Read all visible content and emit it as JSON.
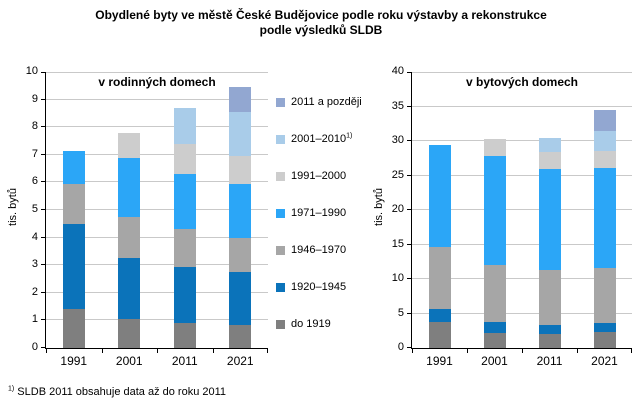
{
  "title": {
    "line1": "Obydlené byty ve městě České Budějovice podle roku výstavby a rekonstrukce",
    "line2": "podle výsledků SLDB"
  },
  "footnote": {
    "sup": "1)",
    "text": " SLDB 2011 obsahuje data až do roku 2011"
  },
  "colors": {
    "grid": "#c9c9c9",
    "axis": "#000000",
    "background": "#ffffff"
  },
  "legend": {
    "position": "center-between-panels",
    "items": [
      {
        "label": "2011 a později",
        "sup": "",
        "color": "#92a7d1"
      },
      {
        "label": "2001–2010",
        "sup": "1)",
        "color": "#a9cce9"
      },
      {
        "label": "1991–2000",
        "sup": "",
        "color": "#cdcdcd"
      },
      {
        "label": "1971–1990",
        "sup": "",
        "color": "#2ba6f7"
      },
      {
        "label": "1946–1970",
        "sup": "",
        "color": "#a6a6a6"
      },
      {
        "label": "1920–1945",
        "sup": "",
        "color": "#0b73ba"
      },
      {
        "label": "do 1919",
        "sup": "",
        "color": "#7f7f7f"
      }
    ]
  },
  "chart_data": [
    {
      "type": "bar",
      "stacked": true,
      "title": "v rodinných domech",
      "ylabel": "tis. bytů",
      "xlabel": "",
      "categories": [
        "1991",
        "2001",
        "2011",
        "2021"
      ],
      "ylim": [
        0,
        10
      ],
      "ytick_step": 1,
      "grid": true,
      "series": [
        {
          "name": "do 1919",
          "color": "#7f7f7f",
          "values": [
            1.4,
            1.05,
            0.9,
            0.85
          ]
        },
        {
          "name": "1920–1945",
          "color": "#0b73ba",
          "values": [
            3.1,
            2.2,
            2.05,
            1.9
          ]
        },
        {
          "name": "1946–1970",
          "color": "#a6a6a6",
          "values": [
            1.45,
            1.5,
            1.35,
            1.25
          ]
        },
        {
          "name": "1971–1990",
          "color": "#2ba6f7",
          "values": [
            1.2,
            2.15,
            2.0,
            1.95
          ]
        },
        {
          "name": "1991–2000",
          "color": "#cdcdcd",
          "values": [
            0,
            0.9,
            1.1,
            1.0
          ]
        },
        {
          "name": "2001–2010",
          "color": "#a9cce9",
          "values": [
            0,
            0,
            1.3,
            1.6
          ]
        },
        {
          "name": "2011 a později",
          "color": "#92a7d1",
          "values": [
            0,
            0,
            0,
            0.9
          ]
        }
      ],
      "totals": [
        7.15,
        7.8,
        8.7,
        9.45
      ]
    },
    {
      "type": "bar",
      "stacked": true,
      "title": "v bytových domech",
      "ylabel": "tis. bytů",
      "xlabel": "",
      "categories": [
        "1991",
        "2001",
        "2011",
        "2021"
      ],
      "ylim": [
        0,
        40
      ],
      "ytick_step": 5,
      "grid": true,
      "series": [
        {
          "name": "do 1919",
          "color": "#7f7f7f",
          "values": [
            3.8,
            2.2,
            2.1,
            2.3
          ]
        },
        {
          "name": "1920–1945",
          "color": "#0b73ba",
          "values": [
            1.9,
            1.5,
            1.3,
            1.3
          ]
        },
        {
          "name": "1946–1970",
          "color": "#a6a6a6",
          "values": [
            8.9,
            8.3,
            7.9,
            8.0
          ]
        },
        {
          "name": "1971–1990",
          "color": "#2ba6f7",
          "values": [
            14.8,
            15.8,
            14.7,
            14.5
          ]
        },
        {
          "name": "1991–2000",
          "color": "#cdcdcd",
          "values": [
            0,
            2.5,
            2.4,
            2.4
          ]
        },
        {
          "name": "2001–2010",
          "color": "#a9cce9",
          "values": [
            0,
            0,
            2.1,
            2.9
          ]
        },
        {
          "name": "2011 a později",
          "color": "#92a7d1",
          "values": [
            0,
            0,
            0,
            3.1
          ]
        }
      ],
      "totals": [
        29.4,
        30.3,
        30.5,
        34.5
      ]
    }
  ]
}
